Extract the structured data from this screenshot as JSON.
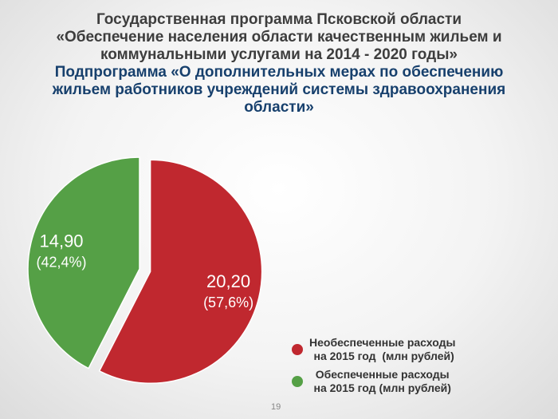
{
  "slide": {
    "title_lines": [
      "Государственная программа Псковской области",
      "«Обеспечение населения области качественным жильем и",
      "коммунальными услугами на 2014 - 2020 годы»"
    ],
    "subtitle_lines": [
      "Подпрограмма «О дополнительных мерах по обеспечению",
      "жильем работников учреждений системы здравоохранения",
      "области»"
    ],
    "page_number": "19"
  },
  "chart_data": {
    "type": "pie",
    "title": "",
    "slices": [
      {
        "value": 20.2,
        "value_label": "20,20",
        "percent_label": "(57,6%)",
        "legend": "Необеспеченные расходы\n на 2015 год  (млн рублей)",
        "color": "#c0282f",
        "exploded": true
      },
      {
        "value": 14.9,
        "value_label": "14,90",
        "percent_label": "(42,4%)",
        "legend": "Обеспеченные расходы\nна 2015 год (млн рублей)",
        "color": "#55a046",
        "exploded": false
      }
    ],
    "legend_position": "bottom-right"
  }
}
